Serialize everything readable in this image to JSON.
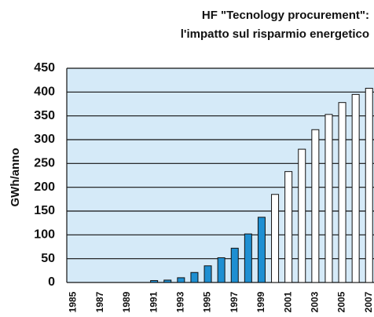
{
  "chart_data": {
    "type": "bar",
    "title": [
      "HF \"Tecnology procurement\":",
      "l'impatto sul risparmio energetico"
    ],
    "y_label": "GWh/anno",
    "categories": [
      "1985",
      null,
      "1987",
      null,
      "1989",
      null,
      "1991",
      null,
      "1993",
      null,
      "1995",
      null,
      "1997",
      null,
      "1999",
      null,
      "2001",
      null,
      "2003",
      null,
      "2005",
      null,
      "2007"
    ],
    "values": [
      0,
      0,
      0,
      0,
      0,
      0,
      4,
      5,
      10,
      21,
      35,
      52,
      72,
      102,
      137,
      185,
      233,
      280,
      321,
      353,
      378,
      395,
      408
    ],
    "colors": [
      "#1e8fd2",
      "#1e8fd2",
      "#1e8fd2",
      "#1e8fd2",
      "#1e8fd2",
      "#1e8fd2",
      "#1e8fd2",
      "#1e8fd2",
      "#1e8fd2",
      "#1e8fd2",
      "#1e8fd2",
      "#1e8fd2",
      "#1e8fd2",
      "#1e8fd2",
      "#1e8fd2",
      "#ffffff",
      "#ffffff",
      "#ffffff",
      "#ffffff",
      "#ffffff",
      "#ffffff",
      "#ffffff",
      "#ffffff"
    ],
    "ylim": [
      0,
      450
    ],
    "yticks": [
      0,
      50,
      100,
      150,
      200,
      250,
      300,
      350,
      400,
      450
    ],
    "grid": true,
    "plot_background": "#d5eaf8"
  }
}
